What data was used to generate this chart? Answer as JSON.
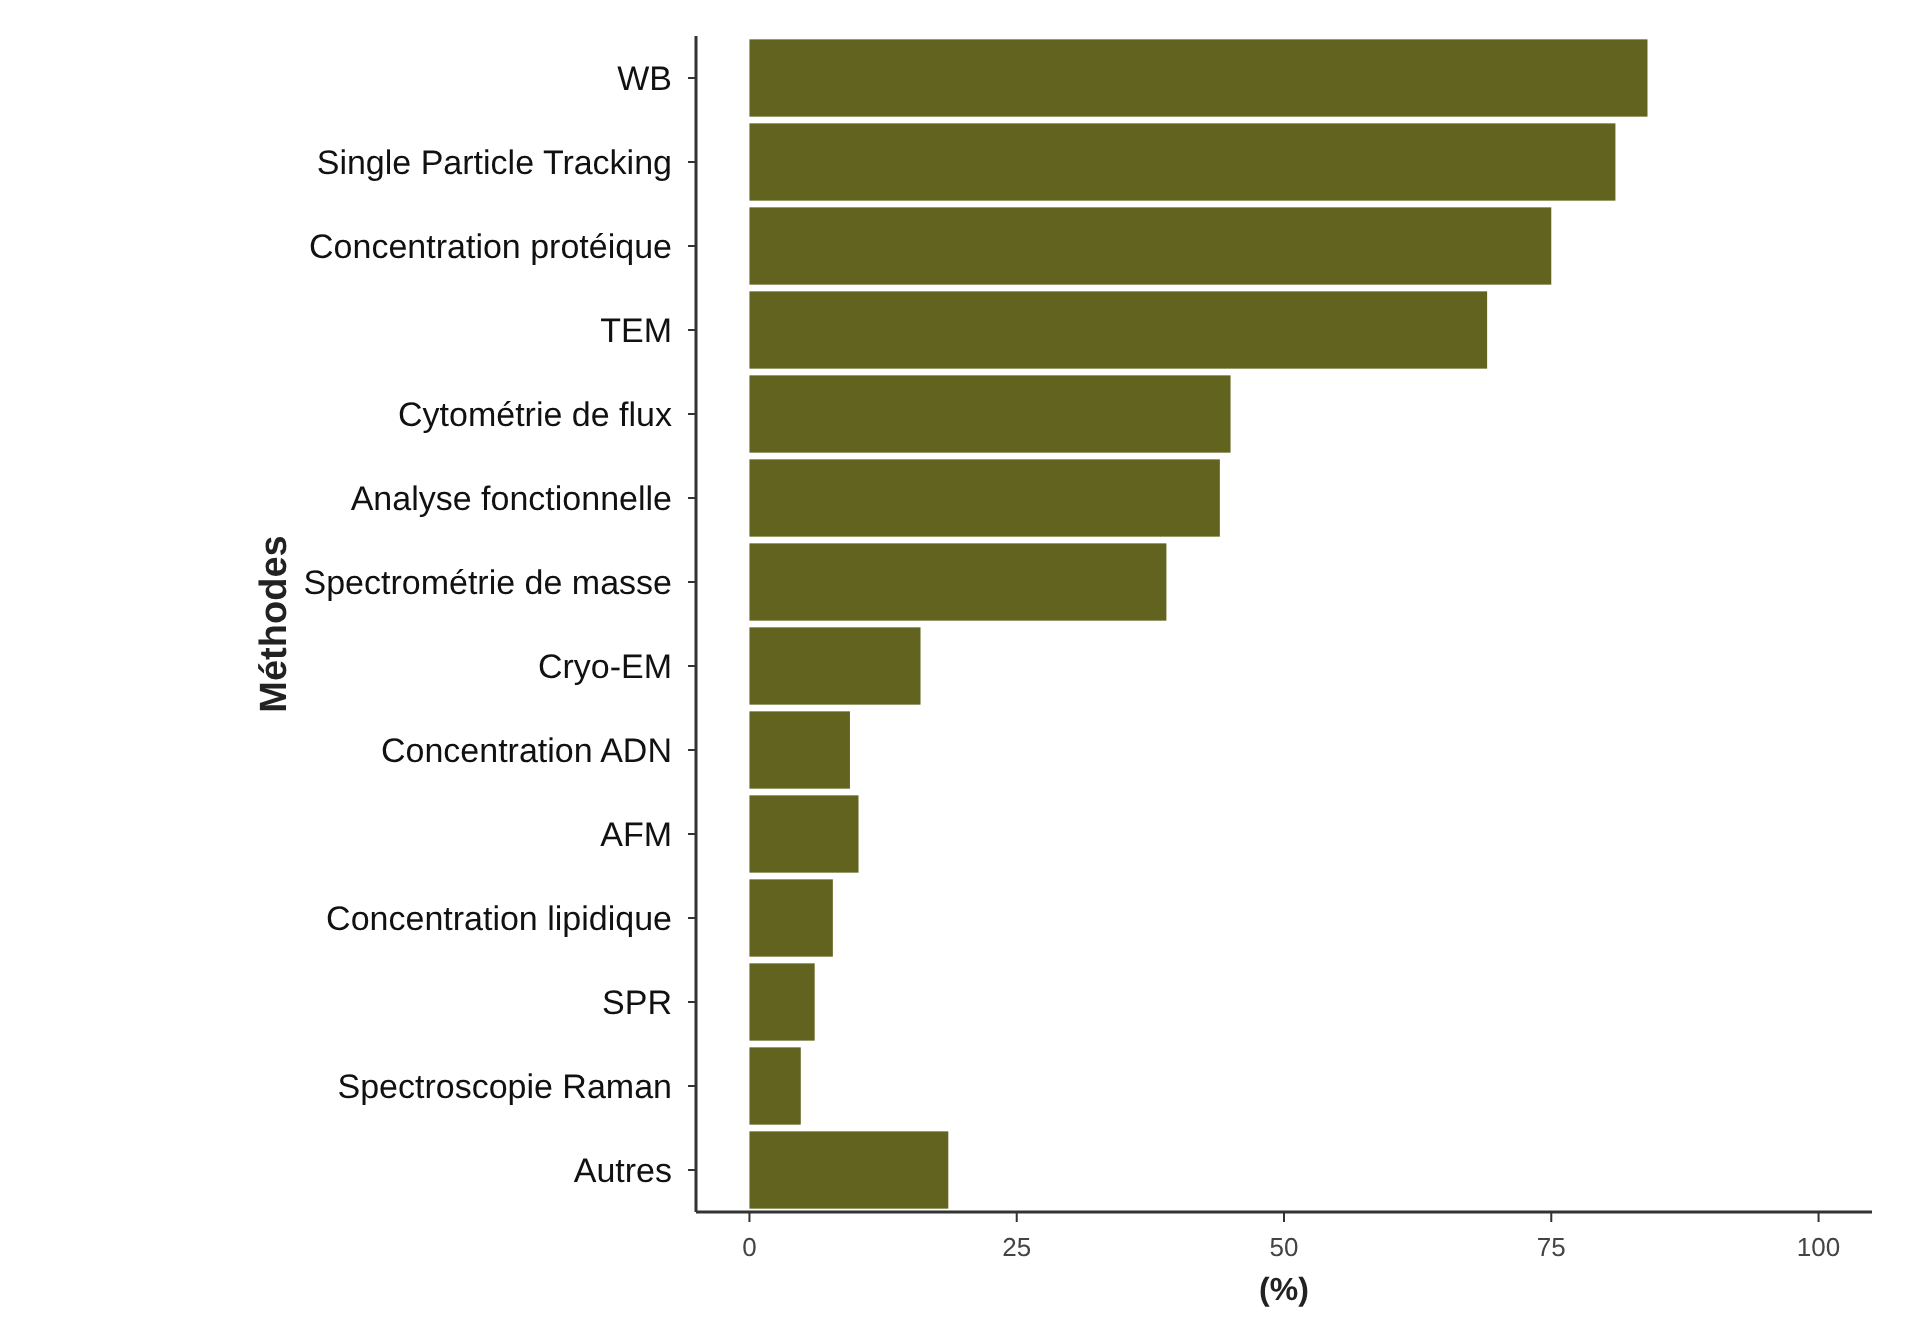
{
  "chart_data": {
    "type": "bar",
    "orientation": "horizontal",
    "xlabel": "(%)",
    "ylabel": "Méthodes",
    "categories": [
      "WB",
      "Single Particle Tracking",
      "Concentration protéique",
      "TEM",
      "Cytométrie de flux",
      "Analyse fonctionnelle",
      "Spectrométrie de masse",
      "Cryo-EM",
      "Concentration ADN",
      "AFM",
      "Concentration lipidique",
      "SPR",
      "Spectroscopie Raman",
      "Autres"
    ],
    "values": [
      84,
      81,
      75,
      69,
      45,
      44,
      39,
      16,
      9.4,
      10.2,
      7.8,
      6.1,
      4.8,
      18.6
    ],
    "color": "#636320",
    "xlim": [
      -5,
      105
    ],
    "xticks": [
      0,
      25,
      50,
      75,
      100
    ],
    "grid": false
  }
}
